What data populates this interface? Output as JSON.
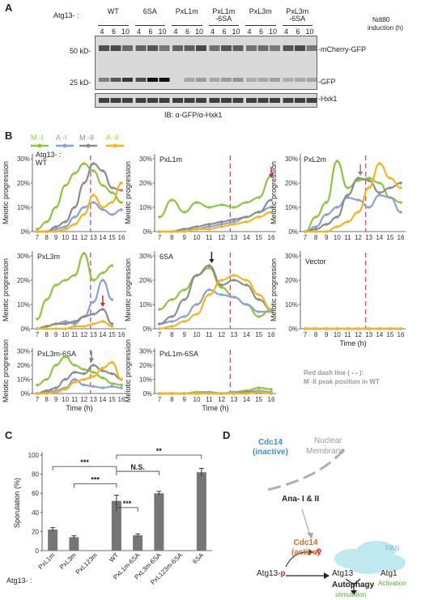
{
  "panelA": {
    "label": "A",
    "strain_label": "Atg13- :",
    "strains": [
      "WT",
      "6SA",
      "PxL1m",
      "PxL1m\n-6SA",
      "PxL3m",
      "PxL3m\n-6SA"
    ],
    "strain_l1": [
      "WT",
      "6SA",
      "PxL1m",
      "PxL1m",
      "PxL3m",
      "PxL3m"
    ],
    "strain_l2": [
      "",
      "",
      "",
      "-6SA",
      "",
      "-6SA"
    ],
    "timepoints": [
      "4",
      "6",
      "10",
      "4",
      "6",
      "10",
      "4",
      "6",
      "10",
      "4",
      "6",
      "10",
      "4",
      "6",
      "10",
      "4",
      "6",
      "10"
    ],
    "induction": "Ndt80\ninduction (h)",
    "induction_l1": "Ndt80",
    "induction_l2": "induction (h)",
    "mw_50": "50 kD-",
    "mw_25": "25 kD-",
    "band_mcherry": "-mCherry-GFP",
    "band_gfp": "-GFP",
    "band_hxk1": "-Hxk1",
    "ib": "IB: α-GFP/α-Hxk1"
  },
  "panelB": {
    "label": "B",
    "legend": [
      "M -I",
      "A -I",
      "M -II",
      "A -II"
    ],
    "colors": {
      "MI": "#8dc63f",
      "AI": "#8da0d8",
      "MII": "#8c8c8c",
      "AII": "#f5b51b",
      "dash": "#d6336c",
      "arrow_red": "#e0202a",
      "arrow_black": "#222222",
      "arrow_gray": "#808080"
    },
    "ylabel": "Meiotic progression",
    "xlabel": "Time (h)",
    "xticks": [
      "7",
      "8",
      "9",
      "10",
      "11",
      "12",
      "13",
      "14",
      "15",
      "16"
    ],
    "yticks": [
      "0%",
      "10%",
      "20%",
      "30%"
    ],
    "note_l1": "Red dash line (",
    "note_l1b": "):",
    "note_l2": "M -II peak position in WT",
    "charts": [
      {
        "title": "Atg13- :\nWT",
        "title_l1": "Atg13- :",
        "title_l2": "WT"
      },
      {
        "title": "PxL1m"
      },
      {
        "title": "PxL2m"
      },
      {
        "title": "PxL3m"
      },
      {
        "title": "6SA"
      },
      {
        "title": "Vector"
      },
      {
        "title": "PxL3m-6SA"
      },
      {
        "title": "PxL1m-6SA"
      }
    ]
  },
  "chart_data": [
    {
      "type": "line",
      "title": "WT",
      "x": [
        7,
        8,
        9,
        10,
        11,
        12,
        13,
        14,
        15,
        16
      ],
      "ylim": [
        0,
        0.32
      ],
      "series": [
        {
          "name": "M -I",
          "values": [
            0.01,
            0.04,
            0.1,
            0.19,
            0.24,
            0.28,
            0.25,
            0.19,
            0.16,
            0.12
          ]
        },
        {
          "name": "A -I",
          "values": [
            0,
            0,
            0.01,
            0.02,
            0.06,
            0.1,
            0.12,
            0.09,
            0.07,
            0.09
          ]
        },
        {
          "name": "M -II",
          "values": [
            0,
            0,
            0.02,
            0.04,
            0.1,
            0.2,
            0.28,
            0.25,
            0.18,
            0.17
          ]
        },
        {
          "name": "A -II",
          "values": [
            0,
            0,
            0,
            0.01,
            0.03,
            0.07,
            0.15,
            0.1,
            0.12,
            0.2
          ]
        }
      ]
    },
    {
      "type": "line",
      "title": "PxL1m",
      "x": [
        7,
        8,
        9,
        10,
        11,
        12,
        13,
        14,
        15,
        16
      ],
      "ylim": [
        0,
        0.32
      ],
      "series": [
        {
          "name": "M -I",
          "values": [
            0.06,
            0.13,
            0.08,
            0.12,
            0.1,
            0.11,
            0.1,
            0.12,
            0.14,
            0.23
          ]
        },
        {
          "name": "A -I",
          "values": [
            0,
            0,
            0.01,
            0.01,
            0.02,
            0.03,
            0.04,
            0.06,
            0.08,
            0.1
          ]
        },
        {
          "name": "M -II",
          "values": [
            0,
            0,
            0.01,
            0.02,
            0.03,
            0.04,
            0.05,
            0.06,
            0.08,
            0.13
          ]
        },
        {
          "name": "A -II",
          "values": [
            0,
            0,
            0,
            0.01,
            0.01,
            0.02,
            0.03,
            0.04,
            0.06,
            0.08
          ]
        }
      ]
    },
    {
      "type": "line",
      "title": "PxL2m",
      "x": [
        7,
        8,
        9,
        10,
        11,
        12,
        13,
        14,
        15,
        16
      ],
      "ylim": [
        0,
        0.32
      ],
      "series": [
        {
          "name": "M -I",
          "values": [
            0,
            0.06,
            0.12,
            0.29,
            0.18,
            0.21,
            0.22,
            0.2,
            0.14,
            0.12
          ]
        },
        {
          "name": "A -I",
          "values": [
            0,
            0.02,
            0.07,
            0.1,
            0.14,
            0.13,
            0.1,
            0.15,
            0.14,
            0.08
          ]
        },
        {
          "name": "M -II",
          "values": [
            0,
            0.01,
            0.03,
            0.06,
            0.15,
            0.22,
            0.21,
            0.16,
            0.18,
            0.2
          ]
        },
        {
          "name": "A -II",
          "values": [
            0,
            0,
            0,
            0.02,
            0.04,
            0.08,
            0.18,
            0.28,
            0.22,
            0.18
          ]
        }
      ]
    },
    {
      "type": "line",
      "title": "PxL3m",
      "x": [
        7,
        8,
        9,
        10,
        11,
        12,
        13,
        14,
        15
      ],
      "ylim": [
        0,
        0.32
      ],
      "series": [
        {
          "name": "M -I",
          "values": [
            0.04,
            0.12,
            0.18,
            0.2,
            0.22,
            0.31,
            0.2,
            0.23,
            0.26
          ]
        },
        {
          "name": "A -I",
          "values": [
            0,
            0.01,
            0.02,
            0.03,
            0.02,
            0.05,
            0.11,
            0.2,
            0.12
          ]
        },
        {
          "name": "M -II",
          "values": [
            0,
            0.01,
            0.02,
            0.02,
            0.03,
            0.05,
            0.06,
            0.08,
            0.02
          ]
        },
        {
          "name": "A -II",
          "values": [
            0,
            0,
            0,
            0,
            0.01,
            0.01,
            0.02,
            0.03,
            0.01
          ]
        }
      ]
    },
    {
      "type": "line",
      "title": "6SA",
      "x": [
        7,
        8,
        9,
        10,
        11,
        12,
        13,
        14,
        15,
        16
      ],
      "ylim": [
        0,
        0.32
      ],
      "series": [
        {
          "name": "M -I",
          "values": [
            0.08,
            0.12,
            0.16,
            0.22,
            0.25,
            0.17,
            0.13,
            0.1,
            0.05,
            0.08
          ]
        },
        {
          "name": "A -I",
          "values": [
            0.02,
            0.03,
            0.05,
            0.1,
            0.16,
            0.14,
            0.13,
            0.1,
            0.07,
            0.07
          ]
        },
        {
          "name": "M -II",
          "values": [
            0.02,
            0.05,
            0.12,
            0.22,
            0.26,
            0.18,
            0.2,
            0.18,
            0.12,
            0.08
          ]
        },
        {
          "name": "A -II",
          "values": [
            0,
            0.01,
            0.03,
            0.06,
            0.14,
            0.2,
            0.22,
            0.2,
            0.14,
            0.08
          ]
        }
      ]
    },
    {
      "type": "line",
      "title": "Vector",
      "x": [
        7,
        8,
        9,
        10,
        11,
        12,
        13,
        14,
        15,
        16
      ],
      "ylim": [
        0,
        0.32
      ],
      "series": [
        {
          "name": "M -I",
          "values": [
            0,
            0,
            0,
            0,
            0,
            0,
            0,
            0,
            0,
            0
          ]
        },
        {
          "name": "A -I",
          "values": [
            0,
            0,
            0,
            0,
            0,
            0,
            0,
            0,
            0,
            0
          ]
        },
        {
          "name": "M -II",
          "values": [
            0,
            0,
            0,
            0,
            0,
            0,
            0,
            0,
            0,
            0
          ]
        },
        {
          "name": "A -II",
          "values": [
            0,
            0,
            0,
            0,
            0,
            0,
            0,
            0,
            0,
            0
          ]
        }
      ]
    },
    {
      "type": "line",
      "title": "PxL3m-6SA",
      "x": [
        7,
        8,
        9,
        10,
        11,
        12,
        13,
        14,
        15,
        16
      ],
      "ylim": [
        0,
        0.32
      ],
      "series": [
        {
          "name": "M -I",
          "values": [
            0.06,
            0.1,
            0.2,
            0.26,
            0.2,
            0.17,
            0.15,
            0.11,
            0.07,
            0.06
          ]
        },
        {
          "name": "A -I",
          "values": [
            0,
            0.01,
            0.02,
            0.04,
            0.1,
            0.06,
            0.05,
            0.04,
            0.05,
            0.04
          ]
        },
        {
          "name": "M -II",
          "values": [
            0,
            0.02,
            0.04,
            0.1,
            0.15,
            0.14,
            0.2,
            0.16,
            0.14,
            0.1
          ]
        },
        {
          "name": "A -II",
          "values": [
            0,
            0,
            0.01,
            0.03,
            0.08,
            0.1,
            0.12,
            0.18,
            0.22,
            0.1
          ]
        }
      ]
    },
    {
      "type": "line",
      "title": "PxL1m-6SA",
      "x": [
        7,
        8,
        9,
        10,
        11,
        12,
        13,
        14,
        15,
        16
      ],
      "ylim": [
        0,
        0.32
      ],
      "series": [
        {
          "name": "M -I",
          "values": [
            0,
            0,
            0,
            0.01,
            0.01,
            0,
            0.01,
            0.02,
            0.04,
            0.03
          ]
        },
        {
          "name": "A -I",
          "values": [
            0,
            0,
            0,
            0,
            0.01,
            0,
            0.01,
            0.01,
            0.02,
            0.01
          ]
        },
        {
          "name": "M -II",
          "values": [
            0,
            0,
            0,
            0,
            0,
            0,
            0,
            0.01,
            0.01,
            0
          ]
        },
        {
          "name": "A -II",
          "values": [
            0,
            0,
            0,
            0,
            0,
            0,
            0,
            0,
            0.01,
            0
          ]
        }
      ]
    },
    {
      "type": "bar",
      "title": "",
      "ylabel": "Sporulation (%)",
      "ylim": [
        0,
        100
      ],
      "categories": [
        "PxL1m",
        "PxL3m",
        "PxL123m",
        "WT",
        "PxL1m-6SA",
        "PxL3m-6SA",
        "PxL123m-6SA",
        "6SA"
      ],
      "values": [
        22,
        14,
        0,
        52,
        16,
        60,
        0,
        82
      ],
      "errors": [
        2,
        1.5,
        0,
        6,
        1.5,
        2,
        0,
        4
      ]
    }
  ],
  "panelC": {
    "label": "C",
    "ylabel": "Sporulation (%)",
    "yticks": [
      "0",
      "20",
      "40",
      "60",
      "80",
      "100"
    ],
    "atg_label": "Atg13- :",
    "sig": [
      "***",
      "***",
      "***",
      "N.S.",
      "**"
    ]
  },
  "panelD": {
    "label": "D",
    "nuclear": "Nuclear",
    "membrane": "Membrane",
    "cdc14_top": "Cdc14",
    "inactive": "(inactive)",
    "ana": "Ana- I & II",
    "cdc14_bot": "Cdc14",
    "active": "(active)",
    "p": "-p",
    "pas": "PAS",
    "atg13p_a": "Atg13-",
    "atg13p_b": "p",
    "atg13": "Atg13",
    "atg1": "Atg1",
    "activation": "Activation",
    "autophagy": "Autophagy",
    "stimulation": "stimulation",
    "colors": {
      "blue": "#3a8fd9",
      "orange": "#e06a1b",
      "red": "#d62a2a",
      "green": "#5aa832",
      "gray": "#9a9a9a",
      "pas": "#bfe8ef"
    }
  }
}
